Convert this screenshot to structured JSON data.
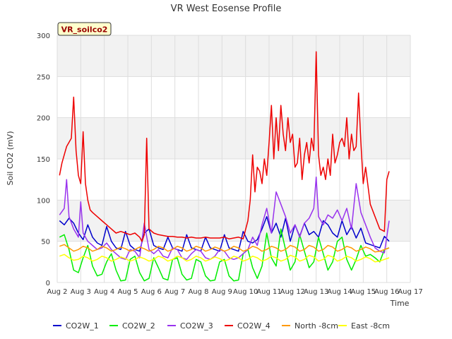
{
  "chart_data": {
    "type": "line",
    "title": "VR West Eosense Profile",
    "badge": "VR_soilco2",
    "xlabel": "Time",
    "ylabel": "Soil CO2 (mV)",
    "ylim": [
      0,
      300
    ],
    "xlim": [
      2,
      17
    ],
    "yticks": [
      0,
      50,
      100,
      150,
      200,
      250,
      300
    ],
    "xticks": [
      {
        "v": 2,
        "label": "Aug 2"
      },
      {
        "v": 3,
        "label": "Aug 3"
      },
      {
        "v": 4,
        "label": "Aug 4"
      },
      {
        "v": 5,
        "label": "Aug 5"
      },
      {
        "v": 6,
        "label": "Aug 6"
      },
      {
        "v": 7,
        "label": "Aug 7"
      },
      {
        "v": 8,
        "label": "Aug 8"
      },
      {
        "v": 9,
        "label": "Aug 9"
      },
      {
        "v": 10,
        "label": "Aug 10"
      },
      {
        "v": 11,
        "label": "Aug 11"
      },
      {
        "v": 12,
        "label": "Aug 12"
      },
      {
        "v": 13,
        "label": "Aug 13"
      },
      {
        "v": 14,
        "label": "Aug 14"
      },
      {
        "v": 15,
        "label": "Aug 15"
      },
      {
        "v": 16,
        "label": "Aug 16"
      },
      {
        "v": 17,
        "label": "Aug 17"
      }
    ],
    "grid": true,
    "legend_position": "bottom",
    "series": [
      {
        "name": "CO2W_1",
        "color": "#0000cc",
        "x": [
          2.1,
          2.3,
          2.5,
          2.7,
          2.9,
          3.1,
          3.3,
          3.5,
          3.7,
          3.9,
          4.1,
          4.3,
          4.5,
          4.7,
          4.9,
          5.1,
          5.3,
          5.5,
          5.7,
          5.9,
          6.1,
          6.3,
          6.5,
          6.7,
          6.9,
          7.1,
          7.3,
          7.5,
          7.7,
          7.9,
          8.1,
          8.3,
          8.5,
          8.7,
          8.9,
          9.1,
          9.3,
          9.5,
          9.7,
          9.9,
          10.1,
          10.3,
          10.5,
          10.7,
          10.9,
          11.1,
          11.3,
          11.5,
          11.7,
          11.9,
          12.1,
          12.3,
          12.5,
          12.7,
          12.9,
          13.1,
          13.3,
          13.5,
          13.7,
          13.9,
          14.1,
          14.3,
          14.5,
          14.7,
          14.9,
          15.1,
          15.3,
          15.5,
          15.7,
          15.9,
          16.1
        ],
        "y": [
          75,
          70,
          78,
          72,
          60,
          52,
          70,
          55,
          48,
          45,
          68,
          50,
          42,
          40,
          62,
          45,
          40,
          38,
          60,
          65,
          45,
          42,
          40,
          55,
          42,
          40,
          38,
          58,
          42,
          40,
          38,
          55,
          42,
          40,
          38,
          58,
          42,
          40,
          38,
          62,
          50,
          48,
          52,
          65,
          80,
          60,
          72,
          55,
          78,
          50,
          70,
          56,
          72,
          58,
          62,
          55,
          75,
          70,
          60,
          55,
          75,
          58,
          68,
          54,
          66,
          48,
          46,
          44,
          42,
          56,
          50
        ]
      },
      {
        "name": "CO2W_2",
        "color": "#00ee00",
        "x": [
          2.1,
          2.3,
          2.5,
          2.7,
          2.9,
          3.1,
          3.3,
          3.5,
          3.7,
          3.9,
          4.1,
          4.3,
          4.5,
          4.7,
          4.9,
          5.1,
          5.3,
          5.5,
          5.7,
          5.9,
          6.1,
          6.3,
          6.5,
          6.7,
          6.9,
          7.1,
          7.3,
          7.5,
          7.7,
          7.9,
          8.1,
          8.3,
          8.5,
          8.7,
          8.9,
          9.1,
          9.3,
          9.5,
          9.7,
          9.9,
          10.1,
          10.3,
          10.5,
          10.7,
          10.9,
          11.1,
          11.3,
          11.5,
          11.7,
          11.9,
          12.1,
          12.3,
          12.5,
          12.7,
          12.9,
          13.1,
          13.3,
          13.5,
          13.7,
          13.9,
          14.1,
          14.3,
          14.5,
          14.7,
          14.9,
          15.1,
          15.3,
          15.5,
          15.7,
          15.9,
          16.1
        ],
        "y": [
          55,
          58,
          40,
          15,
          12,
          30,
          45,
          20,
          8,
          10,
          25,
          35,
          15,
          2,
          3,
          28,
          32,
          12,
          2,
          5,
          30,
          18,
          5,
          3,
          28,
          30,
          10,
          3,
          5,
          28,
          25,
          8,
          2,
          3,
          25,
          28,
          8,
          2,
          3,
          35,
          40,
          18,
          5,
          20,
          60,
          30,
          20,
          65,
          40,
          15,
          25,
          58,
          38,
          18,
          25,
          55,
          35,
          15,
          25,
          50,
          55,
          28,
          15,
          28,
          45,
          32,
          34,
          30,
          25,
          40,
          42
        ]
      },
      {
        "name": "CO2W_3",
        "color": "#9933ee",
        "x": [
          2.1,
          2.3,
          2.4,
          2.5,
          2.7,
          2.9,
          3.0,
          3.1,
          3.3,
          3.5,
          3.7,
          3.9,
          4.1,
          4.3,
          4.5,
          4.7,
          4.9,
          5.1,
          5.3,
          5.5,
          5.7,
          5.9,
          6.1,
          6.3,
          6.5,
          6.7,
          6.9,
          7.1,
          7.3,
          7.5,
          7.7,
          7.9,
          8.1,
          8.3,
          8.5,
          8.7,
          8.9,
          9.1,
          9.3,
          9.5,
          9.7,
          9.9,
          10.1,
          10.3,
          10.5,
          10.7,
          10.9,
          11.1,
          11.3,
          11.5,
          11.7,
          11.9,
          12.1,
          12.3,
          12.5,
          12.7,
          12.9,
          13.0,
          13.1,
          13.3,
          13.5,
          13.7,
          13.9,
          14.1,
          14.3,
          14.5,
          14.7,
          14.9,
          15.1,
          15.3,
          15.5,
          15.7,
          15.9,
          16.1
        ],
        "y": [
          82,
          90,
          125,
          80,
          65,
          55,
          98,
          60,
          50,
          45,
          40,
          42,
          48,
          40,
          35,
          30,
          28,
          40,
          38,
          30,
          72,
          40,
          35,
          40,
          32,
          30,
          42,
          40,
          30,
          28,
          35,
          40,
          38,
          30,
          28,
          32,
          40,
          38,
          30,
          28,
          30,
          35,
          40,
          55,
          45,
          70,
          90,
          60,
          110,
          95,
          80,
          60,
          70,
          55,
          72,
          78,
          90,
          128,
          80,
          70,
          82,
          78,
          88,
          75,
          90,
          65,
          120,
          85,
          70,
          55,
          42,
          38,
          36,
          75
        ]
      },
      {
        "name": "CO2W_4",
        "color": "#ee0000",
        "x": [
          2.1,
          2.2,
          2.4,
          2.6,
          2.7,
          2.8,
          2.9,
          3.0,
          3.1,
          3.2,
          3.3,
          3.4,
          3.5,
          3.7,
          3.9,
          4.1,
          4.3,
          4.5,
          4.7,
          4.9,
          5.1,
          5.3,
          5.5,
          5.6,
          5.7,
          5.8,
          5.9,
          6.1,
          6.3,
          6.5,
          6.7,
          6.9,
          7.1,
          7.3,
          7.5,
          7.7,
          7.9,
          8.1,
          8.3,
          8.5,
          8.7,
          8.9,
          9.1,
          9.3,
          9.5,
          9.7,
          9.9,
          10.1,
          10.2,
          10.3,
          10.4,
          10.5,
          10.6,
          10.7,
          10.8,
          10.9,
          11.0,
          11.1,
          11.2,
          11.3,
          11.4,
          11.5,
          11.6,
          11.7,
          11.8,
          11.9,
          12.0,
          12.1,
          12.2,
          12.3,
          12.4,
          12.5,
          12.6,
          12.7,
          12.8,
          12.9,
          13.0,
          13.1,
          13.2,
          13.3,
          13.4,
          13.5,
          13.6,
          13.7,
          13.8,
          13.9,
          14.0,
          14.1,
          14.2,
          14.3,
          14.4,
          14.5,
          14.6,
          14.7,
          14.8,
          14.9,
          15.0,
          15.1,
          15.3,
          15.5,
          15.7,
          15.9,
          16.0,
          16.1
        ],
        "y": [
          130,
          145,
          165,
          175,
          225,
          160,
          130,
          120,
          183,
          120,
          100,
          88,
          85,
          80,
          75,
          70,
          65,
          60,
          62,
          60,
          58,
          60,
          55,
          50,
          58,
          175,
          65,
          60,
          58,
          57,
          56,
          56,
          55,
          55,
          54,
          55,
          54,
          54,
          55,
          54,
          54,
          54,
          55,
          53,
          54,
          55,
          53,
          75,
          100,
          155,
          110,
          140,
          135,
          120,
          150,
          130,
          170,
          215,
          150,
          200,
          160,
          215,
          180,
          160,
          200,
          170,
          180,
          140,
          145,
          175,
          125,
          155,
          170,
          145,
          175,
          160,
          280,
          155,
          130,
          140,
          125,
          150,
          130,
          180,
          145,
          155,
          170,
          175,
          165,
          200,
          150,
          180,
          160,
          165,
          230,
          170,
          120,
          140,
          95,
          80,
          65,
          62,
          125,
          135
        ]
      },
      {
        "name": "North -8cm",
        "color": "#ff9900",
        "x": [
          2.1,
          2.3,
          2.5,
          2.7,
          2.9,
          3.1,
          3.3,
          3.5,
          3.7,
          3.9,
          4.1,
          4.3,
          4.5,
          4.7,
          4.9,
          5.1,
          5.3,
          5.5,
          5.7,
          5.9,
          6.1,
          6.3,
          6.5,
          6.7,
          6.9,
          7.1,
          7.3,
          7.5,
          7.7,
          7.9,
          8.1,
          8.3,
          8.5,
          8.7,
          8.9,
          9.1,
          9.3,
          9.5,
          9.7,
          9.9,
          10.1,
          10.3,
          10.5,
          10.7,
          10.9,
          11.1,
          11.3,
          11.5,
          11.7,
          11.9,
          12.1,
          12.3,
          12.5,
          12.7,
          12.9,
          13.1,
          13.3,
          13.5,
          13.7,
          13.9,
          14.1,
          14.3,
          14.5,
          14.7,
          14.9,
          15.1,
          15.3,
          15.5,
          15.7,
          15.9,
          16.1
        ],
        "y": [
          44,
          46,
          42,
          38,
          40,
          44,
          42,
          38,
          40,
          44,
          42,
          38,
          40,
          43,
          41,
          38,
          40,
          43,
          41,
          38,
          40,
          44,
          42,
          38,
          40,
          44,
          42,
          38,
          40,
          44,
          42,
          38,
          40,
          43,
          41,
          38,
          40,
          44,
          42,
          38,
          40,
          44,
          42,
          38,
          40,
          44,
          42,
          38,
          40,
          45,
          43,
          38,
          40,
          45,
          43,
          38,
          40,
          45,
          43,
          38,
          40,
          44,
          42,
          38,
          40,
          43,
          41,
          37,
          38,
          40,
          42
        ]
      },
      {
        "name": "East -8cm",
        "color": "#ffff00",
        "x": [
          2.1,
          2.3,
          2.5,
          2.7,
          2.9,
          3.1,
          3.3,
          3.5,
          3.7,
          3.9,
          4.1,
          4.3,
          4.5,
          4.7,
          4.9,
          5.1,
          5.3,
          5.5,
          5.7,
          5.9,
          6.1,
          6.3,
          6.5,
          6.7,
          6.9,
          7.1,
          7.3,
          7.5,
          7.7,
          7.9,
          8.1,
          8.3,
          8.5,
          8.7,
          8.9,
          9.1,
          9.3,
          9.5,
          9.7,
          9.9,
          10.1,
          10.3,
          10.5,
          10.7,
          10.9,
          11.1,
          11.3,
          11.5,
          11.7,
          11.9,
          12.1,
          12.3,
          12.5,
          12.7,
          12.9,
          13.1,
          13.3,
          13.5,
          13.7,
          13.9,
          14.1,
          14.3,
          14.5,
          14.7,
          14.9,
          15.1,
          15.3,
          15.5,
          15.7,
          15.9,
          16.1
        ],
        "y": [
          32,
          34,
          30,
          27,
          28,
          32,
          30,
          26,
          28,
          32,
          30,
          26,
          28,
          31,
          29,
          26,
          28,
          31,
          29,
          26,
          28,
          32,
          30,
          26,
          28,
          32,
          30,
          26,
          28,
          32,
          30,
          26,
          28,
          31,
          29,
          26,
          28,
          32,
          30,
          26,
          28,
          32,
          30,
          26,
          28,
          32,
          30,
          26,
          28,
          33,
          31,
          26,
          28,
          33,
          31,
          26,
          28,
          33,
          31,
          26,
          28,
          32,
          30,
          26,
          28,
          31,
          29,
          25,
          26,
          28,
          30
        ]
      }
    ]
  }
}
